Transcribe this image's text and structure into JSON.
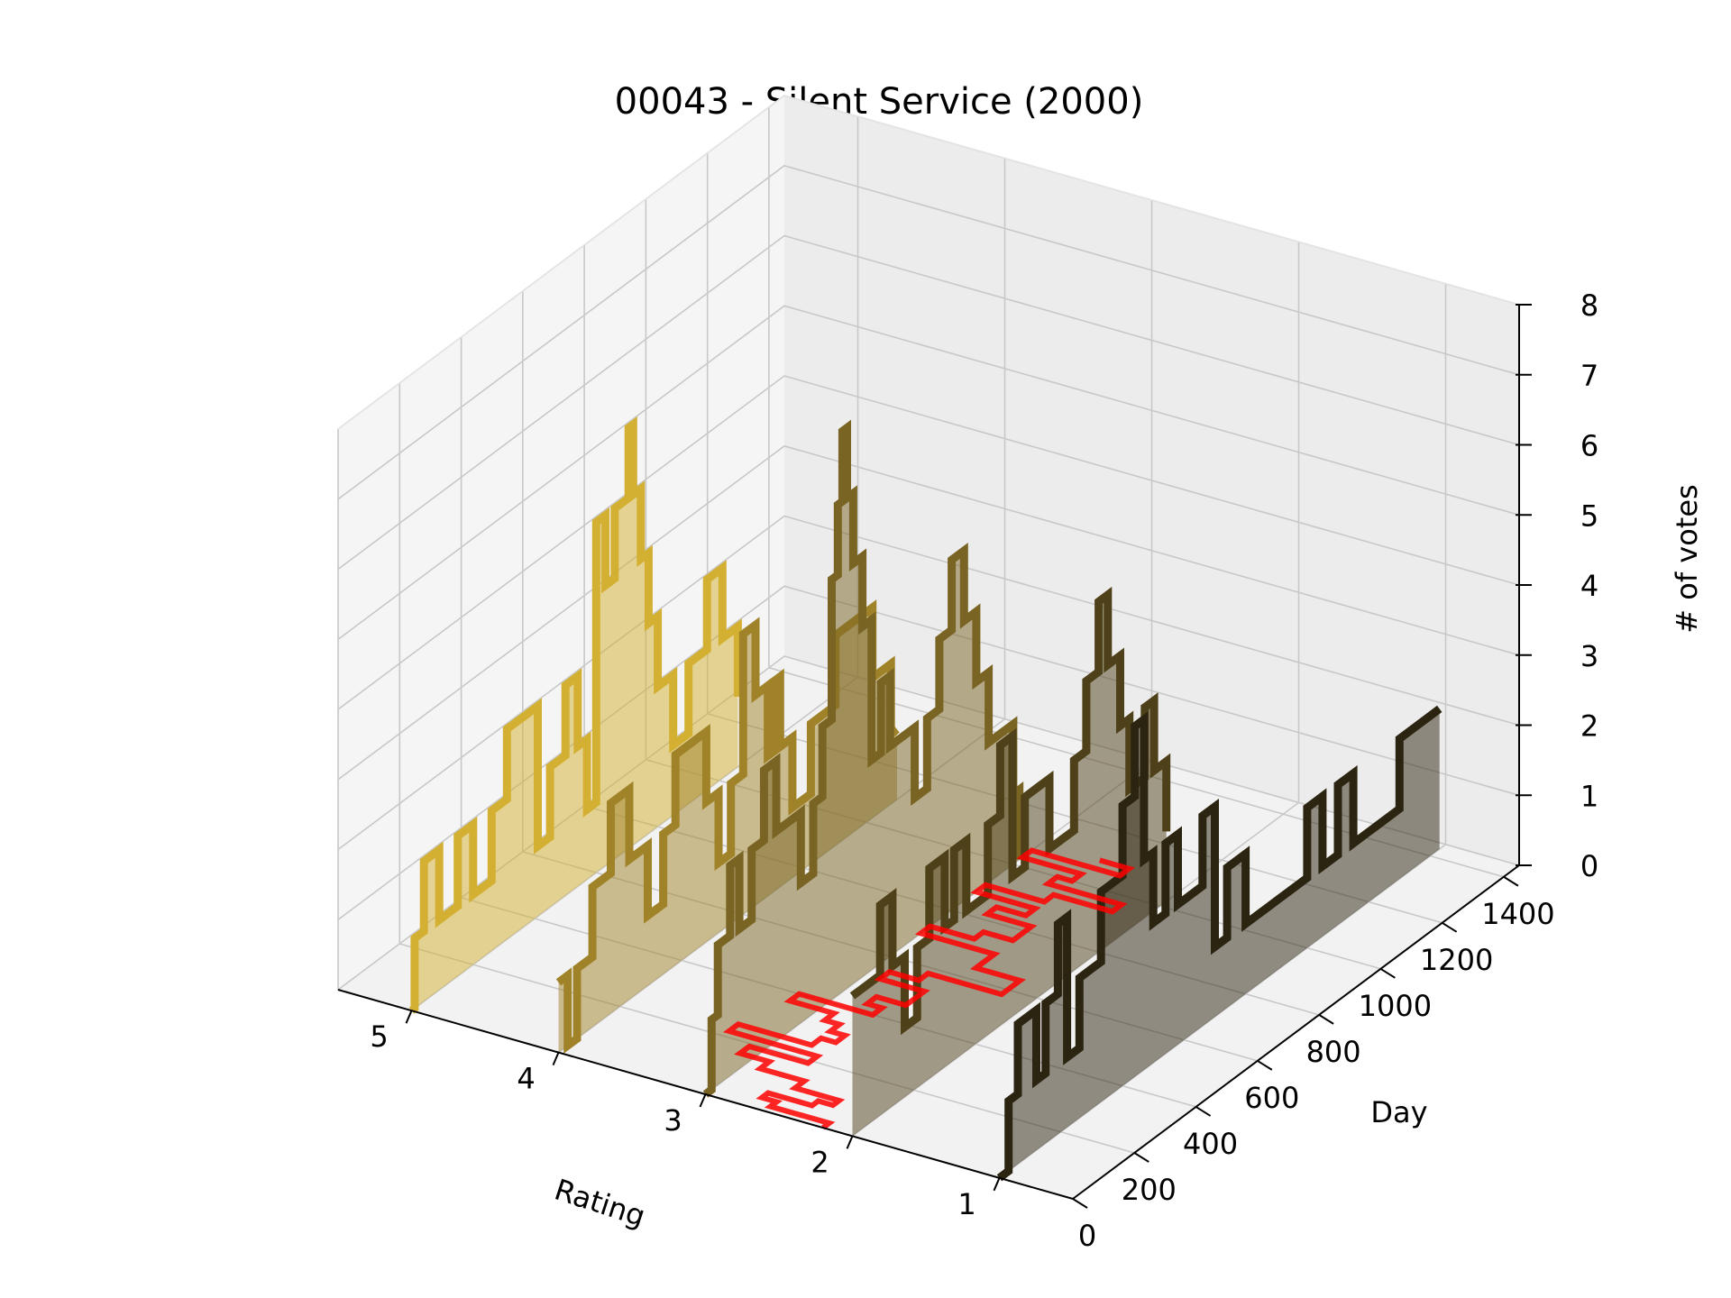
{
  "chart_data": {
    "type": "3d-step",
    "title": "00043 - Silent Service (2000)",
    "xlabel": "Rating",
    "ylabel": "Day",
    "zlabel": "# of votes",
    "xlim": [
      0.5,
      5.5
    ],
    "ylim": [
      0,
      1450
    ],
    "zlim": [
      0,
      8
    ],
    "x_ticks": [
      "1",
      "2",
      "3",
      "4",
      "5"
    ],
    "y_ticks": [
      "0",
      "200",
      "400",
      "600",
      "800",
      "1000",
      "1200",
      "1400"
    ],
    "z_ticks": [
      "0",
      "1",
      "2",
      "3",
      "4",
      "5",
      "6",
      "7",
      "8"
    ],
    "grid": true,
    "colors": {
      "r5": "#d4b032",
      "r4": "#a08329",
      "r3": "#7a6423",
      "r2": "#4e4018",
      "r1": "#2b2410",
      "mean": "#ff0000"
    },
    "series": [
      {
        "rating": 5,
        "points": [
          [
            0,
            0
          ],
          [
            10,
            1
          ],
          [
            40,
            2
          ],
          [
            90,
            1
          ],
          [
            150,
            2
          ],
          [
            200,
            1
          ],
          [
            260,
            2
          ],
          [
            310,
            3
          ],
          [
            360,
            3
          ],
          [
            410,
            1
          ],
          [
            450,
            2
          ],
          [
            500,
            3
          ],
          [
            540,
            2
          ],
          [
            570,
            1
          ],
          [
            600,
            5
          ],
          [
            630,
            4
          ],
          [
            660,
            5
          ],
          [
            690,
            5
          ],
          [
            705,
            6
          ],
          [
            720,
            5
          ],
          [
            745,
            4
          ],
          [
            770,
            3
          ],
          [
            800,
            2
          ],
          [
            850,
            1
          ],
          [
            900,
            2
          ],
          [
            960,
            3
          ],
          [
            1010,
            2
          ],
          [
            1060,
            1
          ]
        ]
      },
      {
        "rating": 4,
        "points": [
          [
            0,
            1
          ],
          [
            30,
            0
          ],
          [
            60,
            1
          ],
          [
            110,
            2
          ],
          [
            170,
            3
          ],
          [
            230,
            2
          ],
          [
            290,
            1
          ],
          [
            340,
            2
          ],
          [
            380,
            3
          ],
          [
            400,
            3
          ],
          [
            430,
            3
          ],
          [
            450,
            3
          ],
          [
            480,
            2
          ],
          [
            520,
            1
          ],
          [
            560,
            2
          ],
          [
            600,
            4
          ],
          [
            640,
            3
          ],
          [
            680,
            2
          ],
          [
            700,
            3
          ],
          [
            720,
            2
          ],
          [
            760,
            1
          ],
          [
            820,
            2
          ],
          [
            900,
            3
          ],
          [
            960,
            3
          ],
          [
            1020,
            2
          ],
          [
            1080,
            1
          ],
          [
            1100,
            1
          ]
        ]
      },
      {
        "rating": 3,
        "points": [
          [
            0,
            0
          ],
          [
            20,
            1
          ],
          [
            40,
            2
          ],
          [
            80,
            3
          ],
          [
            110,
            2
          ],
          [
            150,
            3
          ],
          [
            190,
            4
          ],
          [
            230,
            3
          ],
          [
            270,
            3
          ],
          [
            310,
            2
          ],
          [
            350,
            3
          ],
          [
            380,
            4
          ],
          [
            410,
            6
          ],
          [
            430,
            7
          ],
          [
            445,
            8
          ],
          [
            460,
            7
          ],
          [
            480,
            6
          ],
          [
            510,
            5
          ],
          [
            540,
            3
          ],
          [
            570,
            4
          ],
          [
            600,
            3
          ],
          [
            640,
            3
          ],
          [
            680,
            2
          ],
          [
            720,
            3
          ],
          [
            760,
            4
          ],
          [
            800,
            5
          ],
          [
            840,
            4
          ],
          [
            880,
            3
          ],
          [
            920,
            2
          ],
          [
            960,
            2
          ],
          [
            1000,
            1
          ],
          [
            1020,
            0
          ]
        ]
      },
      {
        "rating": 2,
        "points": [
          [
            0,
            2
          ],
          [
            20,
            2
          ],
          [
            60,
            2
          ],
          [
            90,
            3
          ],
          [
            130,
            2
          ],
          [
            170,
            1
          ],
          [
            210,
            2
          ],
          [
            250,
            3
          ],
          [
            300,
            2
          ],
          [
            330,
            3
          ],
          [
            370,
            2
          ],
          [
            400,
            2
          ],
          [
            440,
            3
          ],
          [
            480,
            4
          ],
          [
            520,
            2
          ],
          [
            560,
            3
          ],
          [
            600,
            3
          ],
          [
            640,
            2
          ],
          [
            680,
            2
          ],
          [
            720,
            3
          ],
          [
            760,
            4
          ],
          [
            800,
            5
          ],
          [
            830,
            4
          ],
          [
            870,
            3
          ],
          [
            900,
            2
          ],
          [
            950,
            3
          ],
          [
            980,
            2
          ],
          [
            1020,
            1
          ]
        ]
      },
      {
        "rating": 1,
        "points": [
          [
            0,
            0
          ],
          [
            30,
            1
          ],
          [
            60,
            2
          ],
          [
            90,
            2
          ],
          [
            120,
            1
          ],
          [
            150,
            2
          ],
          [
            190,
            3
          ],
          [
            220,
            1
          ],
          [
            260,
            2
          ],
          [
            300,
            2
          ],
          [
            330,
            3
          ],
          [
            360,
            3
          ],
          [
            400,
            4
          ],
          [
            440,
            5
          ],
          [
            470,
            3
          ],
          [
            500,
            2
          ],
          [
            540,
            3
          ],
          [
            580,
            2
          ],
          [
            620,
            2
          ],
          [
            660,
            3
          ],
          [
            700,
            1
          ],
          [
            740,
            2
          ],
          [
            800,
            1
          ],
          [
            860,
            1
          ],
          [
            900,
            1
          ],
          [
            960,
            1
          ],
          [
            1000,
            2
          ],
          [
            1050,
            1
          ],
          [
            1100,
            2
          ],
          [
            1150,
            1
          ],
          [
            1200,
            1
          ],
          [
            1250,
            1
          ],
          [
            1300,
            2
          ],
          [
            1350,
            2
          ],
          [
            1400,
            2
          ],
          [
            1430,
            2
          ]
        ]
      }
    ],
    "mean_rating_trace": {
      "days": [
        0,
        20,
        40,
        60,
        80,
        100,
        130,
        160,
        190,
        220,
        250,
        280,
        310,
        340,
        370,
        400,
        430,
        460,
        490,
        520,
        550,
        580,
        610,
        640,
        670,
        700,
        730,
        760,
        790,
        820,
        850,
        880,
        910,
        940,
        970,
        1000,
        1030,
        1060,
        1090
      ],
      "values": [
        2.2,
        2.6,
        2.7,
        2.4,
        2.3,
        2.6,
        2.9,
        3.1,
        2.7,
        3.3,
        2.8,
        2.7,
        2.8,
        2.9,
        3.2,
        2.7,
        2.8,
        2.6,
        2.6,
        2.9,
        2.7,
        2.2,
        2.2,
        2.5,
        2.5,
        3.0,
        2.7,
        2.5,
        2.5,
        2.8,
        2.6,
        3.0,
        2.6,
        2.2,
        2.7,
        2.6,
        3.0,
        2.4,
        2.6
      ]
    }
  }
}
